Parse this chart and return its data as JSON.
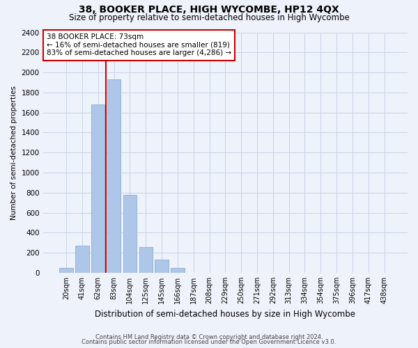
{
  "title": "38, BOOKER PLACE, HIGH WYCOMBE, HP12 4QX",
  "subtitle": "Size of property relative to semi-detached houses in High Wycombe",
  "xlabel": "Distribution of semi-detached houses by size in High Wycombe",
  "ylabel": "Number of semi-detached properties",
  "categories": [
    "20sqm",
    "41sqm",
    "62sqm",
    "83sqm",
    "104sqm",
    "125sqm",
    "145sqm",
    "166sqm",
    "187sqm",
    "208sqm",
    "229sqm",
    "250sqm",
    "271sqm",
    "292sqm",
    "313sqm",
    "334sqm",
    "354sqm",
    "375sqm",
    "396sqm",
    "417sqm",
    "438sqm"
  ],
  "values": [
    50,
    270,
    1680,
    1930,
    780,
    255,
    130,
    50,
    0,
    0,
    0,
    0,
    0,
    0,
    0,
    0,
    0,
    0,
    0,
    0,
    0
  ],
  "bar_color": "#aec6e8",
  "bar_edge_color": "#8aafd0",
  "vline_color": "#cc0000",
  "vline_pos": 2.5,
  "annotation_text": "38 BOOKER PLACE: 73sqm\n← 16% of semi-detached houses are smaller (819)\n83% of semi-detached houses are larger (4,286) →",
  "annotation_box_color": "#ffffff",
  "annotation_box_edge": "#cc0000",
  "ylim": [
    0,
    2400
  ],
  "yticks": [
    0,
    200,
    400,
    600,
    800,
    1000,
    1200,
    1400,
    1600,
    1800,
    2000,
    2200,
    2400
  ],
  "grid_color": "#c8d4e8",
  "background_color": "#eef2fa",
  "footnote1": "Contains HM Land Registry data © Crown copyright and database right 2024.",
  "footnote2": "Contains public sector information licensed under the Open Government Licence v3.0.",
  "title_fontsize": 10,
  "subtitle_fontsize": 8.5
}
